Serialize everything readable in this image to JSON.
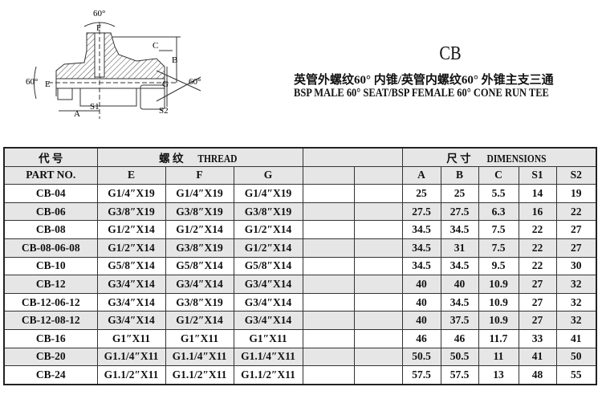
{
  "header": {
    "code": "CB",
    "title_cn": "英管外螺纹60° 内锥/英管内螺纹60° 外锥主支三通",
    "title_en": "BSP MALE 60° SEAT/BSP FEMALE 60° CONE RUN TEE"
  },
  "drawing": {
    "angle_top": "60°",
    "angle_left": "60°",
    "angle_right": "60°",
    "labels": [
      "F",
      "C",
      "B",
      "E",
      "G",
      "A",
      "S1",
      "S2"
    ]
  },
  "table": {
    "part_cn": "代  号",
    "part_en": "PART  NO.",
    "thread_cn": "螺  纹",
    "thread_en": "THREAD",
    "dim_cn": "尺  寸",
    "dim_en": "DIMENSIONS",
    "thread_cols": [
      "E",
      "F",
      "G"
    ],
    "dim_cols": [
      "A",
      "B",
      "C",
      "S1",
      "S2"
    ],
    "rows": [
      [
        "CB-04",
        "G1/4″X19",
        "G1/4″X19",
        "G1/4″X19",
        "25",
        "25",
        "5.5",
        "14",
        "19"
      ],
      [
        "CB-06",
        "G3/8″X19",
        "G3/8″X19",
        "G3/8″X19",
        "27.5",
        "27.5",
        "6.3",
        "16",
        "22"
      ],
      [
        "CB-08",
        "G1/2″X14",
        "G1/2″X14",
        "G1/2″X14",
        "34.5",
        "34.5",
        "7.5",
        "22",
        "27"
      ],
      [
        "CB-08-06-08",
        "G1/2″X14",
        "G3/8″X19",
        "G1/2″X14",
        "34.5",
        "31",
        "7.5",
        "22",
        "27"
      ],
      [
        "CB-10",
        "G5/8″X14",
        "G5/8″X14",
        "G5/8″X14",
        "34.5",
        "34.5",
        "9.5",
        "22",
        "30"
      ],
      [
        "CB-12",
        "G3/4″X14",
        "G3/4″X14",
        "G3/4″X14",
        "40",
        "40",
        "10.9",
        "27",
        "32"
      ],
      [
        "CB-12-06-12",
        "G3/4″X14",
        "G3/8″X19",
        "G3/4″X14",
        "40",
        "34.5",
        "10.9",
        "27",
        "32"
      ],
      [
        "CB-12-08-12",
        "G3/4″X14",
        "G1/2″X14",
        "G3/4″X14",
        "40",
        "37.5",
        "10.9",
        "27",
        "32"
      ],
      [
        "CB-16",
        "G1″X11",
        "G1″X11",
        "G1″X11",
        "46",
        "46",
        "11.7",
        "33",
        "41"
      ],
      [
        "CB-20",
        "G1.1/4″X11",
        "G1.1/4″X11",
        "G1.1/4″X11",
        "50.5",
        "50.5",
        "11",
        "41",
        "50"
      ],
      [
        "CB-24",
        "G1.1/2″X11",
        "G1.1/2″X11",
        "G1.1/2″X11",
        "57.5",
        "57.5",
        "13",
        "48",
        "55"
      ]
    ]
  }
}
